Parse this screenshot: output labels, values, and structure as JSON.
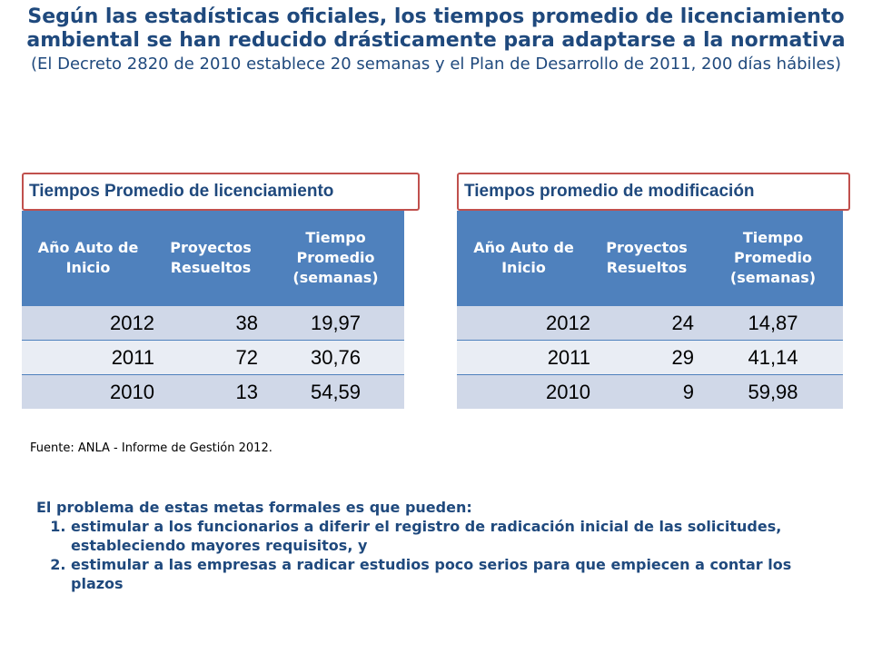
{
  "header": {
    "title": "Según las estadísticas oficiales, los tiempos promedio de licenciamiento ambiental se han reducido drásticamente para adaptarse a la normativa",
    "subtitle": "(El Decreto 2820 de 2010 establece 20 semanas y el Plan de Desarrollo de 2011, 200 días hábiles)"
  },
  "table_left": {
    "label": "Tiempos Promedio de licenciamiento",
    "headers": [
      "Año Auto de Inicio",
      "Proyectos Resueltos",
      "Tiempo Promedio (semanas)"
    ],
    "rows": [
      [
        "2012",
        "38",
        "19,97"
      ],
      [
        "2011",
        "72",
        "30,76"
      ],
      [
        "2010",
        "13",
        "54,59"
      ]
    ]
  },
  "table_right": {
    "label": "Tiempos promedio de modificación",
    "headers": [
      "Año Auto de Inicio",
      "Proyectos Resueltos",
      "Tiempo Promedio (semanas)"
    ],
    "rows": [
      [
        "2012",
        "24",
        "14,87"
      ],
      [
        "2011",
        "29",
        "41,14"
      ],
      [
        "2010",
        "9",
        "59,98"
      ]
    ]
  },
  "source": "Fuente: ANLA - Informe de Gestión 2012.",
  "problem": {
    "intro": "El problema de estas metas formales es que pueden:",
    "items": [
      "estimular a los funcionarios a diferir el registro de radicación inicial de las solicitudes, estableciendo mayores requisitos, y",
      "estimular a las empresas a radicar estudios poco serios para que empiecen a contar los plazos"
    ]
  },
  "colors": {
    "title": "#1F497D",
    "header_fill": "#4F81BD",
    "row_dark": "#D0D8E8",
    "row_light": "#E9EDF4",
    "label_border": "#C0504D"
  }
}
